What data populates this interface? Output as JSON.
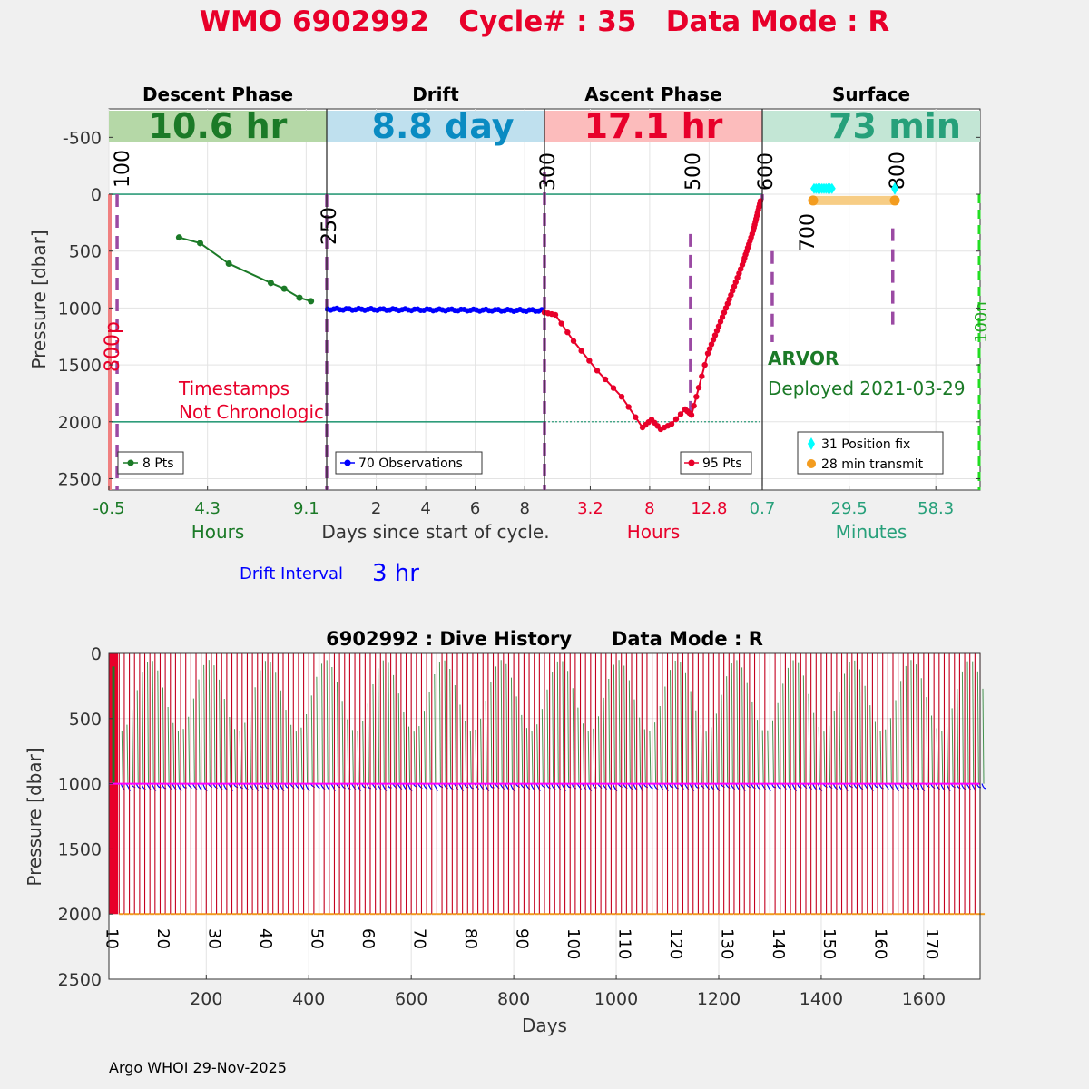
{
  "header": {
    "title": "WMO 6902992   Cycle# : 35   Data Mode : R",
    "title_color": "#e8002a"
  },
  "phases": [
    {
      "name": "Descent Phase",
      "duration": "10.6 hr",
      "bg": "#b5d8a7",
      "fg": "#1b7a27"
    },
    {
      "name": "Drift",
      "duration": "8.8 day",
      "bg": "#bfe0ee",
      "fg": "#0a8bc2"
    },
    {
      "name": "Ascent Phase",
      "duration": "17.1 hr",
      "bg": "#fcbcbc",
      "fg": "#e8002a"
    },
    {
      "name": "Surface",
      "duration": "73 min",
      "bg": "#c3e6d5",
      "fg": "#27a07a"
    }
  ],
  "top_chart": {
    "ylabel": "Pressure [dbar]",
    "ylim": [
      -750,
      2600
    ],
    "yticks": [
      -500,
      0,
      500,
      1000,
      1500,
      2000,
      2500
    ],
    "ytick_labels": [
      "-500",
      "0",
      "500",
      "1000",
      "1500",
      "2000",
      "2500"
    ],
    "xtick_groups": [
      {
        "labels": [
          "-0.5",
          "4.3",
          "9.1"
        ],
        "values": [
          -0.5,
          4.3,
          9.1
        ],
        "range": [
          -0.5,
          10.1
        ],
        "color": "#1b7a27",
        "unit": "Hours"
      },
      {
        "labels": [
          "2",
          "4",
          "6",
          "8"
        ],
        "values": [
          2,
          4,
          6,
          8
        ],
        "range": [
          0,
          8.8
        ],
        "color": "#333333",
        "unit": "Days since start of cycle."
      },
      {
        "labels": [
          "3.2",
          "8",
          "12.8"
        ],
        "values": [
          3.2,
          8,
          12.8
        ],
        "range": [
          -0.5,
          17.1
        ],
        "color": "#e8002a",
        "unit": "Hours"
      },
      {
        "labels": [
          "0.7",
          "29.5",
          "58.3"
        ],
        "values": [
          0.7,
          29.5,
          58.3
        ],
        "range": [
          0.7,
          73
        ],
        "color": "#27a07a",
        "unit": "Minutes"
      }
    ],
    "reference_lines": [
      0,
      2000
    ],
    "markers": [
      {
        "label": "100",
        "panel": 0,
        "x": -0.1
      },
      {
        "label": "250",
        "panel": 1,
        "x": 0
      },
      {
        "label": "300",
        "panel": 2,
        "x": -0.5
      },
      {
        "label": "500",
        "panel": 2,
        "x": 11.3
      },
      {
        "label": "600",
        "panel": 2,
        "x": 17.1
      },
      {
        "label": "700",
        "panel": 3,
        "x": 4
      },
      {
        "label": "800",
        "panel": 3,
        "x": 44
      },
      {
        "label": "800p",
        "panel": 0,
        "x": -0.5
      },
      {
        "label": "100n",
        "panel": 3,
        "x": 70
      }
    ],
    "annotations": {
      "timestamps": [
        "Timestamps",
        "Not Chronologic"
      ],
      "float_type": "ARVOR",
      "deployed": "Deployed 2021-03-29",
      "drift_interval_label": "Drift Interval",
      "drift_interval_value": "3 hr"
    },
    "legends": {
      "descent": "8 Pts",
      "drift": "70 Observations",
      "ascent": "95 Pts",
      "position": "31 Position fix",
      "transmit": "28 min transmit"
    },
    "colors": {
      "descent": "#1b7a27",
      "drift": "#0000ff",
      "ascent": "#e8002a",
      "marker": "#9b4aa3",
      "position": "#00ffff",
      "transmit": "#f39c1f",
      "transmit_bar": "#f7cd85",
      "ref_line": "#2e9c7a",
      "lime": "#22dd22",
      "salmon": "#f08080"
    }
  },
  "bottom_chart": {
    "title": "6902992 : Dive History      Data Mode : R",
    "ylabel": "Pressure [dbar]",
    "xlabel": "Days",
    "xlim": [
      10,
      1710
    ],
    "ylim": [
      0,
      2500
    ],
    "xticks": [
      200,
      400,
      600,
      800,
      1000,
      1200,
      1400,
      1600
    ],
    "xtick_labels": [
      "200",
      "400",
      "600",
      "800",
      "1000",
      "1200",
      "1400",
      "1600"
    ],
    "yticks": [
      0,
      500,
      1000,
      1500,
      2000,
      2500
    ],
    "ytick_labels": [
      "0",
      "500",
      "1000",
      "1500",
      "2000",
      "2500"
    ],
    "cycle_labels": [
      "10",
      "20",
      "30",
      "40",
      "50",
      "60",
      "70",
      "80",
      "90",
      "100",
      "110",
      "120",
      "130",
      "140",
      "150",
      "160",
      "170"
    ],
    "cycle_label_days": [
      20,
      120,
      220,
      320,
      420,
      520,
      620,
      720,
      820,
      920,
      1020,
      1120,
      1220,
      1320,
      1420,
      1520,
      1620
    ],
    "num_cycles": 171,
    "cycle_interval_days": 10,
    "first_cycle_day": 10,
    "drift_pressure": 1000,
    "profile_pressure": 2000
  },
  "footer": {
    "text": "Argo WHOI 29-Nov-2025"
  }
}
